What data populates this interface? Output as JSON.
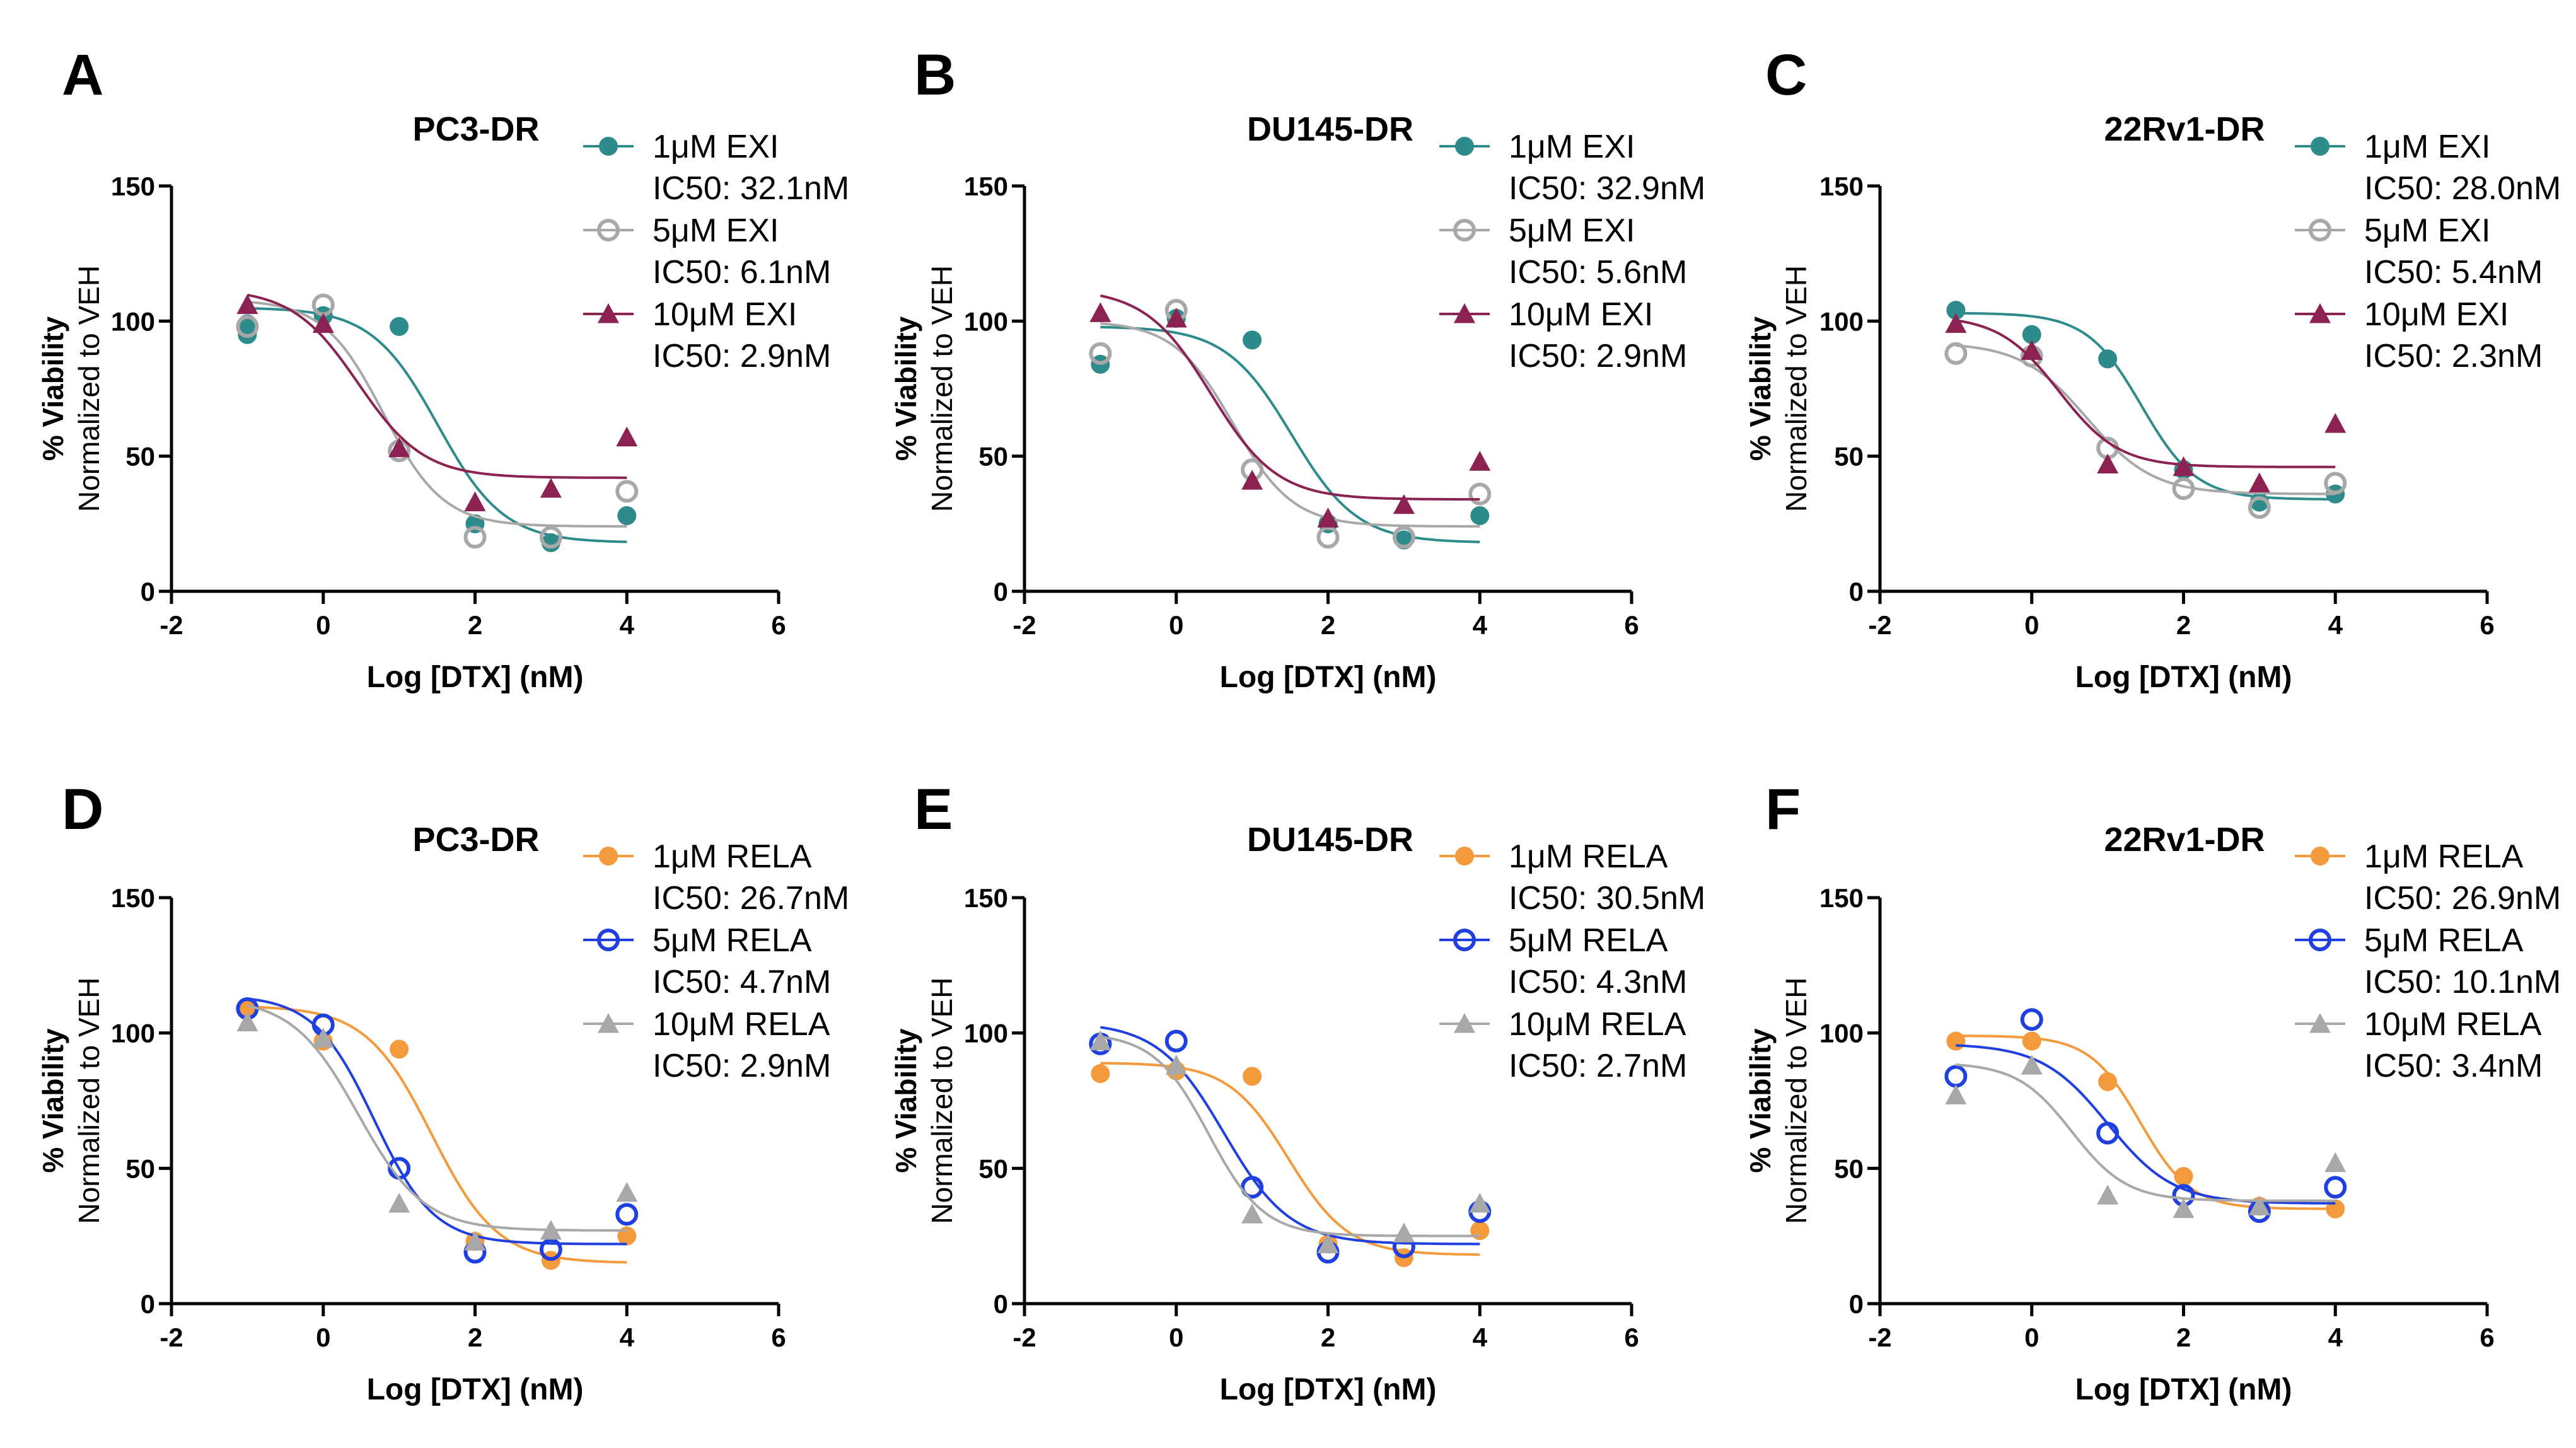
{
  "figure": {
    "xlabel": "Log [DTX] (nM)",
    "ylabel_line1": "% Viability",
    "ylabel_line2": "Normalized to VEH",
    "xlim": [
      -2,
      6
    ],
    "ylim": [
      0,
      150
    ],
    "xticks": [
      "-2",
      "0",
      "2",
      "4",
      "6"
    ],
    "yticks": [
      "0",
      "50",
      "100",
      "150"
    ]
  },
  "chart_data": [
    {
      "type": "scatter",
      "panel": "A",
      "title": "PC3-DR",
      "xlabel": "Log [DTX] (nM)",
      "ylabel": "% Viability Normalized to VEH",
      "xlim": [
        -2,
        6
      ],
      "ylim": [
        0,
        150
      ],
      "x": [
        -1,
        0,
        1,
        2,
        3,
        4
      ],
      "series": [
        {
          "name": "1μM EXI",
          "ic50": "IC50: 32.1nM",
          "marker": "circle-filled",
          "color": "#2e8b8b",
          "values": [
            [
              -1,
              95
            ],
            [
              -1,
              99
            ],
            [
              0,
              102
            ],
            [
              1,
              98
            ],
            [
              2,
              25
            ],
            [
              3,
              18
            ],
            [
              4,
              28
            ]
          ],
          "fit": {
            "top": 105,
            "bottom": 18,
            "logec50": 1.51,
            "hill": 1.0
          }
        },
        {
          "name": "5μM EXI",
          "ic50": "IC50: 6.1nM",
          "marker": "circle-open",
          "color": "#a8a8a8",
          "values": [
            [
              -1,
              98
            ],
            [
              0,
              106
            ],
            [
              1,
              52
            ],
            [
              2,
              20
            ],
            [
              3,
              20
            ],
            [
              4,
              37
            ]
          ],
          "fit": {
            "top": 108,
            "bottom": 24,
            "logec50": 0.79,
            "hill": 1.1
          }
        },
        {
          "name": "10μM EXI",
          "ic50": "IC50: 2.9nM",
          "marker": "triangle",
          "color": "#8b2252",
          "values": [
            [
              -1,
              106
            ],
            [
              0,
              99
            ],
            [
              1,
              53
            ],
            [
              2,
              33
            ],
            [
              3,
              38
            ],
            [
              4,
              57
            ]
          ],
          "fit": {
            "top": 112,
            "bottom": 42,
            "logec50": 0.46,
            "hill": 1.0
          }
        }
      ]
    },
    {
      "type": "scatter",
      "panel": "B",
      "title": "DU145-DR",
      "xlabel": "Log [DTX] (nM)",
      "ylabel": "% Viability Normalized to VEH",
      "xlim": [
        -2,
        6
      ],
      "ylim": [
        0,
        150
      ],
      "x": [
        -1,
        0,
        1,
        2,
        3,
        4
      ],
      "series": [
        {
          "name": "1μM EXI",
          "ic50": "IC50: 32.9nM",
          "marker": "circle-filled",
          "color": "#2e8b8b",
          "values": [
            [
              -1,
              84
            ],
            [
              0,
              101
            ],
            [
              1,
              93
            ],
            [
              2,
              25
            ],
            [
              3,
              19
            ],
            [
              4,
              28
            ]
          ],
          "fit": {
            "top": 98,
            "bottom": 18,
            "logec50": 1.52,
            "hill": 1.0
          }
        },
        {
          "name": "5μM EXI",
          "ic50": "IC50: 5.6nM",
          "marker": "circle-open",
          "color": "#a8a8a8",
          "values": [
            [
              -1,
              88
            ],
            [
              0,
              104
            ],
            [
              1,
              45
            ],
            [
              2,
              20
            ],
            [
              3,
              20
            ],
            [
              4,
              36
            ]
          ],
          "fit": {
            "top": 100,
            "bottom": 24,
            "logec50": 0.75,
            "hill": 1.1
          }
        },
        {
          "name": "10μM EXI",
          "ic50": "IC50: 2.9nM",
          "marker": "triangle",
          "color": "#8b2252",
          "values": [
            [
              -1,
              103
            ],
            [
              0,
              101
            ],
            [
              1,
              41
            ],
            [
              2,
              27
            ],
            [
              3,
              32
            ],
            [
              4,
              48
            ]
          ],
          "fit": {
            "top": 112,
            "bottom": 34,
            "logec50": 0.46,
            "hill": 1.0
          }
        }
      ]
    },
    {
      "type": "scatter",
      "panel": "C",
      "title": "22Rv1-DR",
      "xlabel": "Log [DTX] (nM)",
      "ylabel": "% Viability Normalized to VEH",
      "xlim": [
        -2,
        6
      ],
      "ylim": [
        0,
        150
      ],
      "x": [
        -1,
        0,
        1,
        2,
        3,
        4
      ],
      "series": [
        {
          "name": "1μM EXI",
          "ic50": "IC50: 28.0nM",
          "marker": "circle-filled",
          "color": "#2e8b8b",
          "values": [
            [
              -1,
              104
            ],
            [
              0,
              95
            ],
            [
              1,
              86
            ],
            [
              2,
              45
            ],
            [
              3,
              33
            ],
            [
              4,
              36
            ]
          ],
          "fit": {
            "top": 103,
            "bottom": 34,
            "logec50": 1.45,
            "hill": 1.2
          }
        },
        {
          "name": "5μM EXI",
          "ic50": "IC50: 5.4nM",
          "marker": "circle-open",
          "color": "#a8a8a8",
          "values": [
            [
              -1,
              88
            ],
            [
              0,
              87
            ],
            [
              1,
              53
            ],
            [
              2,
              38
            ],
            [
              3,
              31
            ],
            [
              4,
              40
            ]
          ],
          "fit": {
            "top": 92,
            "bottom": 36,
            "logec50": 0.73,
            "hill": 1.0
          }
        },
        {
          "name": "10μM EXI",
          "ic50": "IC50: 2.3nM",
          "marker": "triangle",
          "color": "#8b2252",
          "values": [
            [
              -1,
              99
            ],
            [
              0,
              89
            ],
            [
              1,
              47
            ],
            [
              2,
              46
            ],
            [
              3,
              40
            ],
            [
              4,
              62
            ]
          ],
          "fit": {
            "top": 102,
            "bottom": 46,
            "logec50": 0.36,
            "hill": 1.1
          }
        }
      ]
    },
    {
      "type": "scatter",
      "panel": "D",
      "title": "PC3-DR",
      "xlabel": "Log [DTX] (nM)",
      "ylabel": "% Viability Normalized to VEH",
      "xlim": [
        -2,
        6
      ],
      "ylim": [
        0,
        150
      ],
      "x": [
        -1,
        0,
        1,
        2,
        3,
        4
      ],
      "series": [
        {
          "name": "1μM RELA",
          "ic50": "IC50: 26.7nM",
          "marker": "circle-filled",
          "color": "#f39a3c",
          "values": [
            [
              -1,
              109
            ],
            [
              0,
              97
            ],
            [
              1,
              94
            ],
            [
              2,
              23
            ],
            [
              3,
              16
            ],
            [
              4,
              25
            ]
          ],
          "fit": {
            "top": 110,
            "bottom": 15,
            "logec50": 1.43,
            "hill": 1.0
          }
        },
        {
          "name": "5μM RELA",
          "ic50": "IC50: 4.7nM",
          "marker": "circle-open",
          "color": "#1f3fdf",
          "values": [
            [
              -1,
              109
            ],
            [
              0,
              103
            ],
            [
              1,
              50
            ],
            [
              2,
              19
            ],
            [
              3,
              20
            ],
            [
              4,
              33
            ]
          ],
          "fit": {
            "top": 114,
            "bottom": 22,
            "logec50": 0.67,
            "hill": 1.1
          }
        },
        {
          "name": "10μM RELA",
          "ic50": "IC50: 2.9nM",
          "marker": "triangle",
          "color": "#a8a8a8",
          "values": [
            [
              -1,
              104
            ],
            [
              0,
              98
            ],
            [
              1,
              37
            ],
            [
              2,
              23
            ],
            [
              3,
              27
            ],
            [
              4,
              41
            ]
          ],
          "fit": {
            "top": 113,
            "bottom": 27,
            "logec50": 0.46,
            "hill": 1.0
          }
        }
      ]
    },
    {
      "type": "scatter",
      "panel": "E",
      "title": "DU145-DR",
      "xlabel": "Log [DTX] (nM)",
      "ylabel": "% Viability Normalized to VEH",
      "xlim": [
        -2,
        6
      ],
      "ylim": [
        0,
        150
      ],
      "x": [
        -1,
        0,
        1,
        2,
        3,
        4
      ],
      "series": [
        {
          "name": "1μM RELA",
          "ic50": "IC50: 30.5nM",
          "marker": "circle-filled",
          "color": "#f39a3c",
          "values": [
            [
              -1,
              85
            ],
            [
              0,
              86
            ],
            [
              1,
              84
            ],
            [
              2,
              22
            ],
            [
              3,
              17
            ],
            [
              4,
              27
            ]
          ],
          "fit": {
            "top": 89,
            "bottom": 18,
            "logec50": 1.48,
            "hill": 1.1
          }
        },
        {
          "name": "5μM RELA",
          "ic50": "IC50: 4.3nM",
          "marker": "circle-open",
          "color": "#1f3fdf",
          "values": [
            [
              -1,
              96
            ],
            [
              0,
              97
            ],
            [
              1,
              43
            ],
            [
              2,
              19
            ],
            [
              3,
              21
            ],
            [
              4,
              34
            ]
          ],
          "fit": {
            "top": 104,
            "bottom": 22,
            "logec50": 0.63,
            "hill": 1.0
          }
        },
        {
          "name": "10μM RELA",
          "ic50": "IC50: 2.7nM",
          "marker": "triangle",
          "color": "#a8a8a8",
          "values": [
            [
              -1,
              97
            ],
            [
              0,
              88
            ],
            [
              1,
              33
            ],
            [
              2,
              22
            ],
            [
              3,
              26
            ],
            [
              4,
              37
            ]
          ],
          "fit": {
            "top": 100,
            "bottom": 25,
            "logec50": 0.43,
            "hill": 1.2
          }
        }
      ]
    },
    {
      "type": "scatter",
      "panel": "F",
      "title": "22Rv1-DR",
      "xlabel": "Log [DTX] (nM)",
      "ylabel": "% Viability Normalized to VEH",
      "xlim": [
        -2,
        6
      ],
      "ylim": [
        0,
        150
      ],
      "x": [
        -1,
        0,
        1,
        2,
        3,
        4
      ],
      "series": [
        {
          "name": "1μM RELA",
          "ic50": "IC50: 26.9nM",
          "marker": "circle-filled",
          "color": "#f39a3c",
          "values": [
            [
              -1,
              97
            ],
            [
              0,
              97
            ],
            [
              1,
              82
            ],
            [
              2,
              47
            ],
            [
              3,
              36
            ],
            [
              4,
              35
            ]
          ],
          "fit": {
            "top": 99,
            "bottom": 35,
            "logec50": 1.43,
            "hill": 1.3
          }
        },
        {
          "name": "5μM RELA",
          "ic50": "IC50: 10.1nM",
          "marker": "circle-open",
          "color": "#1f3fdf",
          "values": [
            [
              -1,
              84
            ],
            [
              0,
              105
            ],
            [
              1,
              63
            ],
            [
              2,
              40
            ],
            [
              3,
              34
            ],
            [
              4,
              43
            ]
          ],
          "fit": {
            "top": 96,
            "bottom": 37,
            "logec50": 1.0,
            "hill": 1.0
          }
        },
        {
          "name": "10μM RELA",
          "ic50": "IC50: 3.4nM",
          "marker": "triangle",
          "color": "#a8a8a8",
          "values": [
            [
              -1,
              77
            ],
            [
              0,
              88
            ],
            [
              1,
              40
            ],
            [
              2,
              35
            ],
            [
              3,
              36
            ],
            [
              4,
              52
            ]
          ],
          "fit": {
            "top": 89,
            "bottom": 38,
            "logec50": 0.53,
            "hill": 1.2
          }
        }
      ]
    }
  ]
}
